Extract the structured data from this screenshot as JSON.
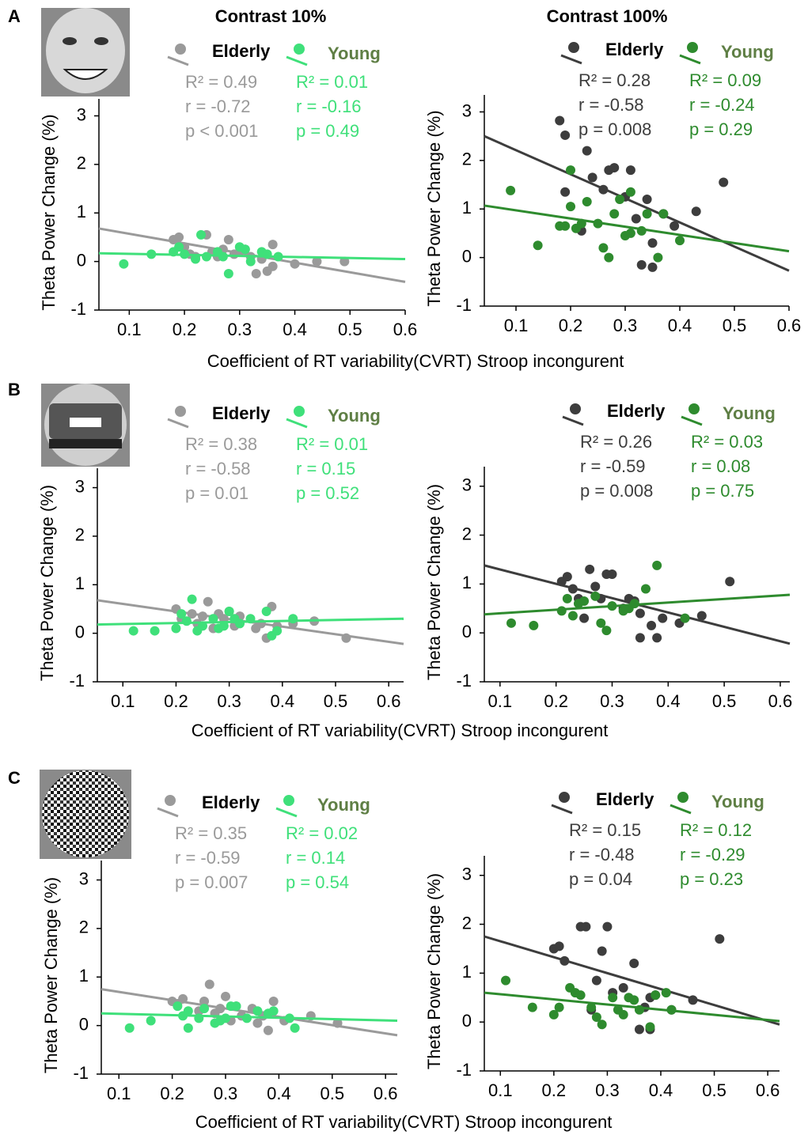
{
  "column_titles": [
    "Contrast 10%",
    "Contrast 100%"
  ],
  "rows": [
    {
      "label": "A",
      "xlabel": "Coefficient of RT variability(CVRT) Stroop incongurent"
    },
    {
      "label": "B",
      "xlabel": "Coefficient of RT variability(CVRT) Stroop incongurent"
    },
    {
      "label": "C",
      "xlabel": "Coefficient of RT variability(CVRT) Stroop incongurent"
    }
  ],
  "chart_data": [
    {
      "type": "scatter",
      "ylabel": "Theta Power Change (%)",
      "xlim": [
        0.045,
        0.6
      ],
      "ylim": [
        -1,
        3.35
      ],
      "xticks": [
        0.1,
        0.2,
        0.3,
        0.4,
        0.5,
        0.6
      ],
      "yticks": [
        -1,
        0,
        1,
        2,
        3
      ],
      "series": [
        {
          "name": "Elderly",
          "color": "#9a9a9a",
          "stats": [
            "R² = 0.49",
            "r = -0.72",
            "p < 0.001"
          ],
          "x": [
            0.18,
            0.19,
            0.2,
            0.21,
            0.22,
            0.24,
            0.25,
            0.26,
            0.27,
            0.28,
            0.29,
            0.3,
            0.31,
            0.32,
            0.33,
            0.34,
            0.35,
            0.36,
            0.36,
            0.4,
            0.44,
            0.49
          ],
          "values": [
            0.45,
            0.5,
            0.3,
            0.15,
            0.1,
            0.55,
            0.2,
            0.1,
            0.25,
            0.45,
            0.15,
            0.2,
            0.25,
            0.1,
            -0.25,
            0.05,
            -0.2,
            0.35,
            -0.1,
            -0.05,
            0,
            0
          ],
          "fit": {
            "x": [
              0.045,
              0.6
            ],
            "y": [
              0.68,
              -0.42
            ]
          }
        },
        {
          "name": "Young",
          "color": "#3fe07a",
          "stats": [
            "R² = 0.01",
            "r = -0.16",
            "p = 0.49"
          ],
          "x": [
            0.09,
            0.14,
            0.18,
            0.19,
            0.2,
            0.22,
            0.23,
            0.24,
            0.26,
            0.27,
            0.28,
            0.3,
            0.31,
            0.32,
            0.34,
            0.35,
            0.37
          ],
          "values": [
            -0.05,
            0.15,
            0.2,
            0.3,
            0.15,
            0.05,
            0.55,
            0.1,
            0.2,
            0.1,
            -0.25,
            0.3,
            0.25,
            0,
            0.2,
            0.15,
            0.1
          ],
          "fit": {
            "x": [
              0.045,
              0.6
            ],
            "y": [
              0.17,
              0.05
            ]
          }
        }
      ]
    },
    {
      "type": "scatter",
      "ylabel": "Theta Power Change (%)",
      "xlim": [
        0.042,
        0.6
      ],
      "ylim": [
        -1,
        3.35
      ],
      "xticks": [
        0.1,
        0.2,
        0.3,
        0.4,
        0.5,
        0.6
      ],
      "yticks": [
        -1,
        0,
        1,
        2,
        3
      ],
      "series": [
        {
          "name": "Elderly",
          "color": "#3d3d3d",
          "stats": [
            "R² = 0.28",
            "r = -0.58",
            "p = 0.008"
          ],
          "x": [
            0.18,
            0.19,
            0.19,
            0.22,
            0.23,
            0.24,
            0.26,
            0.27,
            0.28,
            0.3,
            0.31,
            0.32,
            0.33,
            0.34,
            0.35,
            0.35,
            0.37,
            0.39,
            0.43,
            0.48
          ],
          "values": [
            2.82,
            2.52,
            1.35,
            0.55,
            2.2,
            1.65,
            1.4,
            1.8,
            1.85,
            1.25,
            1.8,
            0.8,
            -0.15,
            1.2,
            0.3,
            -0.2,
            0.9,
            0.65,
            0.95,
            1.55
          ],
          "fit": {
            "x": [
              0.042,
              0.6
            ],
            "y": [
              2.5,
              -0.27
            ]
          }
        },
        {
          "name": "Young",
          "color": "#2e8b2e",
          "stats": [
            "R² = 0.09",
            "r = -0.24",
            "p = 0.29"
          ],
          "x": [
            0.09,
            0.14,
            0.18,
            0.19,
            0.2,
            0.2,
            0.21,
            0.22,
            0.23,
            0.25,
            0.26,
            0.27,
            0.28,
            0.29,
            0.3,
            0.31,
            0.31,
            0.33,
            0.34,
            0.36,
            0.37,
            0.4
          ],
          "values": [
            1.38,
            0.25,
            0.65,
            0.65,
            1.8,
            1.05,
            0.6,
            0.7,
            1.15,
            0.7,
            0.2,
            0,
            0.9,
            1.2,
            0.45,
            0.5,
            1.35,
            0.55,
            0.9,
            0,
            0.9,
            0.35
          ],
          "fit": {
            "x": [
              0.042,
              0.6
            ],
            "y": [
              1.07,
              0.13
            ]
          }
        }
      ]
    },
    {
      "type": "scatter",
      "ylabel": "Theta Power Change (%)",
      "xlim": [
        0.052,
        0.628
      ],
      "ylim": [
        -1,
        3.4
      ],
      "xticks": [
        0.1,
        0.2,
        0.3,
        0.4,
        0.5,
        0.6
      ],
      "yticks": [
        -1,
        0,
        1,
        2,
        3
      ],
      "series": [
        {
          "name": "Elderly",
          "color": "#9a9a9a",
          "stats": [
            "R² = 0.38",
            "r = -0.58",
            "p = 0.01"
          ],
          "x": [
            0.2,
            0.21,
            0.23,
            0.24,
            0.25,
            0.26,
            0.27,
            0.28,
            0.29,
            0.3,
            0.31,
            0.32,
            0.35,
            0.36,
            0.37,
            0.38,
            0.39,
            0.42,
            0.46,
            0.52
          ],
          "values": [
            0.5,
            0.3,
            0.4,
            0.2,
            0.35,
            0.65,
            0.1,
            0.4,
            0.3,
            0.45,
            0.15,
            0.35,
            0.1,
            0.2,
            -0.1,
            0.55,
            0.15,
            0.2,
            0.25,
            -0.1
          ],
          "fit": {
            "x": [
              0.052,
              0.628
            ],
            "y": [
              0.68,
              -0.22
            ]
          }
        },
        {
          "name": "Young",
          "color": "#3fe07a",
          "stats": [
            "R² = 0.01",
            "r = 0.15",
            "p = 0.52"
          ],
          "x": [
            0.12,
            0.16,
            0.2,
            0.21,
            0.22,
            0.23,
            0.24,
            0.25,
            0.27,
            0.28,
            0.29,
            0.3,
            0.31,
            0.32,
            0.34,
            0.37,
            0.38,
            0.39,
            0.42
          ],
          "values": [
            0.05,
            0.05,
            0.1,
            0.4,
            0.25,
            0.7,
            0.05,
            0.15,
            0.3,
            0.1,
            0.15,
            0.45,
            0.3,
            0.2,
            0.3,
            0.45,
            -0.05,
            0.05,
            0.3
          ],
          "fit": {
            "x": [
              0.052,
              0.628
            ],
            "y": [
              0.18,
              0.3
            ]
          }
        }
      ]
    },
    {
      "type": "scatter",
      "ylabel": "Theta Power Change (%)",
      "xlim": [
        0.072,
        0.617
      ],
      "ylim": [
        -1,
        3.4
      ],
      "xticks": [
        0.1,
        0.2,
        0.3,
        0.4,
        0.5,
        0.6
      ],
      "yticks": [
        -1,
        0,
        1,
        2,
        3
      ],
      "series": [
        {
          "name": "Elderly",
          "color": "#3d3d3d",
          "stats": [
            "R² = 0.26",
            "r = -0.59",
            "p = 0.008"
          ],
          "x": [
            0.21,
            0.22,
            0.23,
            0.24,
            0.25,
            0.26,
            0.27,
            0.28,
            0.29,
            0.3,
            0.32,
            0.33,
            0.34,
            0.35,
            0.35,
            0.37,
            0.38,
            0.39,
            0.42,
            0.46,
            0.51
          ],
          "values": [
            1.05,
            1.15,
            0.9,
            0.7,
            0.3,
            1.3,
            0.95,
            0.7,
            1.2,
            1.2,
            0.5,
            0.7,
            0.65,
            0.4,
            -0.1,
            0.15,
            -0.1,
            0.3,
            0.2,
            0.35,
            1.05
          ],
          "fit": {
            "x": [
              0.072,
              0.617
            ],
            "y": [
              1.38,
              -0.22
            ]
          }
        },
        {
          "name": "Young",
          "color": "#2e8b2e",
          "stats": [
            "R² = 0.03",
            "r = 0.08",
            "p = 0.75"
          ],
          "x": [
            0.12,
            0.16,
            0.21,
            0.22,
            0.23,
            0.24,
            0.25,
            0.27,
            0.28,
            0.29,
            0.3,
            0.32,
            0.33,
            0.34,
            0.36,
            0.38,
            0.43
          ],
          "values": [
            0.2,
            0.15,
            0.45,
            0.7,
            0.35,
            0.6,
            0.65,
            0.75,
            0.2,
            0.05,
            0.55,
            0.45,
            0.5,
            0.6,
            0.9,
            1.38,
            0.3
          ],
          "fit": {
            "x": [
              0.072,
              0.617
            ],
            "y": [
              0.38,
              0.78
            ]
          }
        }
      ]
    },
    {
      "type": "scatter",
      "ylabel": "Theta Power Change (%)",
      "xlim": [
        0.067,
        0.622
      ],
      "ylim": [
        -1,
        3.4
      ],
      "xticks": [
        0.1,
        0.2,
        0.3,
        0.4,
        0.5,
        0.6
      ],
      "yticks": [
        -1,
        0,
        1,
        2,
        3
      ],
      "series": [
        {
          "name": "Elderly",
          "color": "#9a9a9a",
          "stats": [
            "R² = 0.35",
            "r = -0.59",
            "p = 0.007"
          ],
          "x": [
            0.2,
            0.21,
            0.22,
            0.25,
            0.26,
            0.27,
            0.28,
            0.29,
            0.3,
            0.31,
            0.32,
            0.33,
            0.35,
            0.36,
            0.37,
            0.38,
            0.39,
            0.41,
            0.46,
            0.51
          ],
          "values": [
            0.5,
            0.45,
            0.55,
            0.3,
            0.5,
            0.85,
            0.25,
            0.35,
            0.6,
            0.1,
            0.4,
            0.2,
            0.35,
            0.05,
            0.2,
            -0.1,
            0.5,
            0.1,
            0.2,
            0.05
          ],
          "fit": {
            "x": [
              0.067,
              0.622
            ],
            "y": [
              0.75,
              -0.2
            ]
          }
        },
        {
          "name": "Young",
          "color": "#3fe07a",
          "stats": [
            "R² = 0.02",
            "r = 0.14",
            "p = 0.54"
          ],
          "x": [
            0.12,
            0.16,
            0.21,
            0.22,
            0.23,
            0.23,
            0.25,
            0.26,
            0.28,
            0.29,
            0.3,
            0.31,
            0.32,
            0.34,
            0.36,
            0.38,
            0.39,
            0.42,
            0.43
          ],
          "values": [
            -0.05,
            0.1,
            0.4,
            0.2,
            0.3,
            -0.05,
            0.15,
            0.35,
            0.05,
            0.1,
            0.15,
            0.4,
            0.4,
            0.15,
            0.3,
            0.25,
            0.3,
            0.15,
            -0.05
          ],
          "fit": {
            "x": [
              0.067,
              0.622
            ],
            "y": [
              0.25,
              0.1
            ]
          }
        }
      ]
    },
    {
      "type": "scatter",
      "ylabel": "Theta Power Change (%)",
      "xlim": [
        0.07,
        0.622
      ],
      "ylim": [
        -1,
        3.4
      ],
      "xticks": [
        0.1,
        0.2,
        0.3,
        0.4,
        0.5,
        0.6
      ],
      "yticks": [
        -1,
        0,
        1,
        2,
        3
      ],
      "series": [
        {
          "name": "Elderly",
          "color": "#3d3d3d",
          "stats": [
            "R² = 0.15",
            "r = -0.48",
            "p = 0.04"
          ],
          "x": [
            0.2,
            0.21,
            0.22,
            0.25,
            0.26,
            0.27,
            0.28,
            0.29,
            0.3,
            0.31,
            0.33,
            0.35,
            0.36,
            0.37,
            0.38,
            0.38,
            0.39,
            0.42,
            0.46,
            0.51
          ],
          "values": [
            1.5,
            1.55,
            1.25,
            1.95,
            1.95,
            0.25,
            0.85,
            1.45,
            1.95,
            0.6,
            0.7,
            1.2,
            -0.15,
            0.3,
            0.5,
            -0.15,
            0.55,
            0.25,
            0.45,
            1.7
          ],
          "fit": {
            "x": [
              0.07,
              0.622
            ],
            "y": [
              1.75,
              -0.05
            ]
          }
        },
        {
          "name": "Young",
          "color": "#2e8b2e",
          "stats": [
            "R² = 0.12",
            "r = -0.29",
            "p = 0.23"
          ],
          "x": [
            0.11,
            0.16,
            0.2,
            0.21,
            0.23,
            0.24,
            0.25,
            0.27,
            0.28,
            0.29,
            0.31,
            0.32,
            0.33,
            0.34,
            0.35,
            0.36,
            0.38,
            0.39,
            0.41,
            0.42
          ],
          "values": [
            0.85,
            0.3,
            0.15,
            0.3,
            0.7,
            0.6,
            0.55,
            0.3,
            0.1,
            -0.05,
            0.5,
            0.25,
            0.15,
            0.5,
            0.45,
            0.25,
            -0.1,
            0.55,
            0.6,
            0.25
          ],
          "fit": {
            "x": [
              0.07,
              0.622
            ],
            "y": [
              0.6,
              0.02
            ]
          }
        }
      ]
    }
  ]
}
